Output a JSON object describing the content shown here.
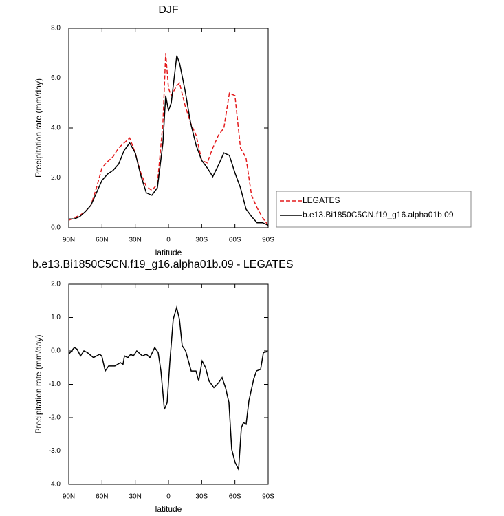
{
  "chart_data": [
    {
      "type": "line",
      "title": "DJF",
      "x_label": "latitude",
      "y_label": "Precipitation rate (mm/day)",
      "x": [
        90,
        85,
        80,
        75,
        70,
        65,
        60,
        55,
        50,
        45,
        40,
        35,
        30,
        25,
        20,
        15,
        10,
        5,
        2.5,
        0,
        -2.5,
        -7.5,
        -10,
        -15,
        -20,
        -25,
        -30,
        -35,
        -40,
        -45,
        -50,
        -55,
        -60,
        -65,
        -70,
        -75,
        -80,
        -85,
        -90
      ],
      "series": [
        {
          "name": "LEGATES",
          "color": "#e31a1c",
          "dashed": true,
          "values": [
            0.3,
            0.4,
            0.5,
            0.65,
            0.9,
            1.6,
            2.4,
            2.65,
            2.85,
            3.2,
            3.4,
            3.6,
            3.0,
            2.2,
            1.65,
            1.5,
            1.75,
            4.2,
            7.0,
            5.6,
            5.3,
            5.7,
            5.8,
            4.9,
            4.2,
            3.7,
            2.7,
            2.6,
            3.2,
            3.7,
            4.0,
            5.4,
            5.3,
            3.2,
            2.8,
            1.3,
            0.8,
            0.4,
            0.1
          ]
        },
        {
          "name": "b.e13.Bi1850C5CN.f19_g16.alpha01b.09",
          "color": "#000000",
          "dashed": false,
          "values": [
            0.35,
            0.35,
            0.45,
            0.65,
            0.9,
            1.4,
            1.9,
            2.15,
            2.3,
            2.55,
            3.1,
            3.4,
            3.0,
            2.1,
            1.4,
            1.3,
            1.6,
            3.4,
            5.3,
            4.7,
            5.0,
            6.9,
            6.6,
            5.5,
            4.2,
            3.3,
            2.7,
            2.4,
            2.05,
            2.5,
            3.0,
            2.9,
            2.2,
            1.6,
            0.75,
            0.45,
            0.2,
            0.2,
            0.1
          ]
        }
      ],
      "xlim": [
        90,
        -90
      ],
      "xticks": [
        {
          "value": 90,
          "label": "90N"
        },
        {
          "value": 60,
          "label": "60N"
        },
        {
          "value": 30,
          "label": "30N"
        },
        0,
        {
          "value": -30,
          "label": "30S"
        },
        {
          "value": -60,
          "label": "60S"
        },
        {
          "value": -90,
          "label": "90S"
        }
      ],
      "ylim": [
        0,
        8
      ],
      "yticks": [
        {
          "value": 0,
          "label": "0.0"
        },
        {
          "value": 2,
          "label": "2.0"
        },
        {
          "value": 4,
          "label": "4.0"
        },
        {
          "value": 6,
          "label": "6.0"
        },
        {
          "value": 8,
          "label": "8.0"
        }
      ],
      "legend": "right"
    },
    {
      "type": "line",
      "title": "b.e13.Bi1850C5CN.f19_g16.alpha01b.09 - LEGATES",
      "x_label": "latitude",
      "y_label": "Precipitation rate (mm/day)",
      "x": [
        90,
        85,
        82.5,
        79.4,
        76.3,
        73.2,
        67.7,
        62.1,
        60.2,
        57.1,
        54,
        48.4,
        43.4,
        41,
        39.7,
        36.6,
        34.1,
        31.7,
        28.6,
        23.6,
        19.9,
        16.8,
        12.4,
        9.3,
        6.8,
        3.7,
        1.2,
        -1.2,
        -4.3,
        -7.4,
        -9.9,
        -12.4,
        -15.5,
        -20.5,
        -24.8,
        -27.3,
        -30.4,
        -33.5,
        -36.6,
        -41,
        -45.3,
        -48.4,
        -51.5,
        -54.6,
        -57.1,
        -60.2,
        -63.3,
        -65.8,
        -67.7,
        -70.1,
        -72.6,
        -76.9,
        -79.4,
        -83.2,
        -85.7,
        -89.4
      ],
      "series": [
        {
          "name": null,
          "color": "#000000",
          "dashed": false,
          "values": [
            -0.1,
            0.1,
            0.05,
            -0.15,
            0.0,
            -0.05,
            -0.2,
            -0.1,
            -0.15,
            -0.6,
            -0.45,
            -0.45,
            -0.35,
            -0.4,
            -0.15,
            -0.2,
            -0.1,
            -0.15,
            0.0,
            -0.15,
            -0.1,
            -0.2,
            0.1,
            -0.05,
            -0.6,
            -1.75,
            -1.55,
            -0.35,
            0.95,
            1.3,
            0.95,
            0.15,
            0.0,
            -0.6,
            -0.6,
            -0.9,
            -0.3,
            -0.5,
            -0.9,
            -1.1,
            -0.95,
            -0.8,
            -1.1,
            -1.55,
            -2.95,
            -3.35,
            -3.55,
            -2.3,
            -2.15,
            -2.2,
            -1.5,
            -0.85,
            -0.6,
            -0.55,
            -0.05,
            -0.02
          ]
        }
      ],
      "xlim": [
        90,
        -90
      ],
      "xticks": [
        {
          "value": 90,
          "label": "90N"
        },
        {
          "value": 60,
          "label": "60N"
        },
        {
          "value": 30,
          "label": "30N"
        },
        0,
        {
          "value": -30,
          "label": "30S"
        },
        {
          "value": -60,
          "label": "60S"
        },
        {
          "value": -90,
          "label": "90S"
        }
      ],
      "ylim": [
        -4,
        2
      ],
      "yticks": [
        {
          "value": -4,
          "label": "-4.0"
        },
        {
          "value": -3,
          "label": "-3.0"
        },
        {
          "value": -2,
          "label": "-2.0"
        },
        {
          "value": -1,
          "label": "-1.0"
        },
        {
          "value": 0,
          "label": "0.0"
        },
        {
          "value": 1,
          "label": "1.0"
        },
        {
          "value": 2,
          "label": "2.0"
        }
      ]
    }
  ]
}
